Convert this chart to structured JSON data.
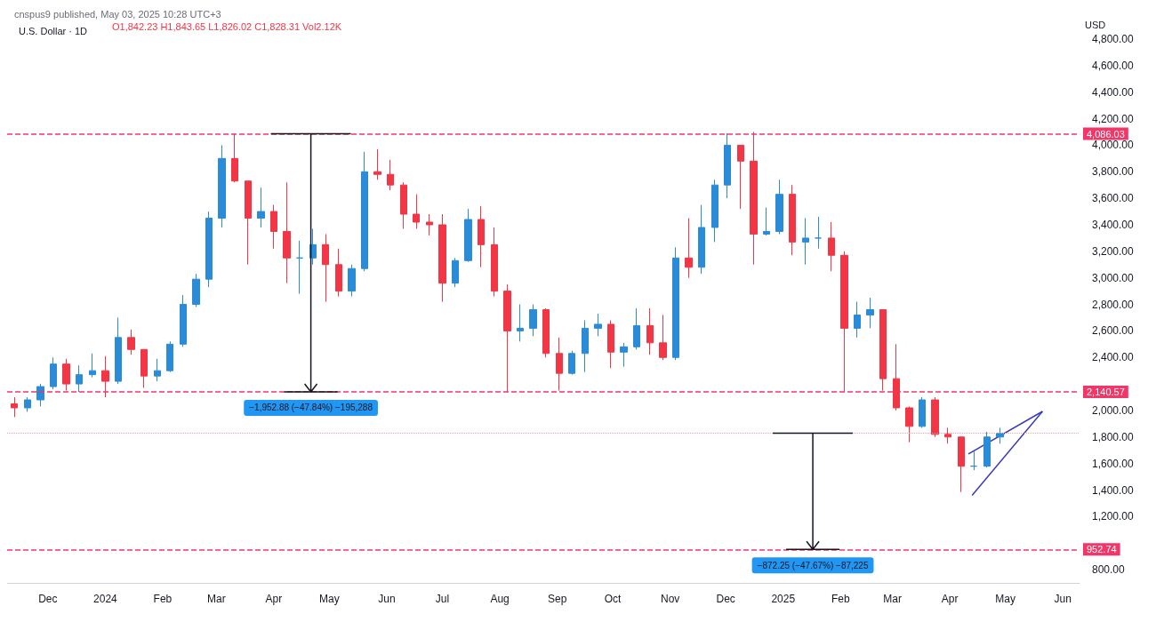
{
  "chart_data": {
    "type": "candlestick",
    "title": "U.S. Dollar · 1D",
    "ylabel": "USD",
    "annotations": [
      "cnspus9 published, May 03, 2025 10:28 UTC+3",
      "O1,842.23 H1,843.65 L1,826.02 C1,828.31 Vol2.12K",
      {
        "text": "−1,952.88 (−47.84%) −195,288",
        "x": "2024-04-21",
        "y": 4086.03
      },
      {
        "text": "−872.25 (−47.67%) −87,225",
        "x": "2025-01-17",
        "y": 1828.31
      }
    ],
    "x": [
      "2023-11-13",
      "2023-11-20",
      "2023-11-27",
      "2023-12-04",
      "2023-12-11",
      "2023-12-18",
      "2023-12-25",
      "2024-01-01",
      "2024-01-08",
      "2024-01-15",
      "2024-01-22",
      "2024-01-29",
      "2024-02-05",
      "2024-02-12",
      "2024-02-19",
      "2024-02-26",
      "2024-03-04",
      "2024-03-11",
      "2024-03-18",
      "2024-03-25",
      "2024-04-01",
      "2024-04-08",
      "2024-04-15",
      "2024-04-22",
      "2024-04-29",
      "2024-05-06",
      "2024-05-13",
      "2024-05-20",
      "2024-05-27",
      "2024-06-03",
      "2024-06-10",
      "2024-06-17",
      "2024-06-24",
      "2024-07-01",
      "2024-07-08",
      "2024-07-15",
      "2024-07-22",
      "2024-07-29",
      "2024-08-05",
      "2024-08-12",
      "2024-08-19",
      "2024-08-26",
      "2024-09-02",
      "2024-09-09",
      "2024-09-16",
      "2024-09-23",
      "2024-09-30",
      "2024-10-07",
      "2024-10-14",
      "2024-10-21",
      "2024-10-28",
      "2024-11-04",
      "2024-11-11",
      "2024-11-18",
      "2024-11-25",
      "2024-12-02",
      "2024-12-09",
      "2024-12-16",
      "2024-12-23",
      "2024-12-30",
      "2025-01-06",
      "2025-01-13",
      "2025-01-20",
      "2025-01-27",
      "2025-02-03",
      "2025-02-10",
      "2025-02-17",
      "2025-02-24",
      "2025-03-03",
      "2025-03-10",
      "2025-03-17",
      "2025-03-24",
      "2025-03-31",
      "2025-04-07",
      "2025-04-14",
      "2025-04-21",
      "2025-04-28"
    ],
    "ohlc": [
      [
        2050,
        2100,
        1950,
        2020
      ],
      [
        2020,
        2100,
        1990,
        2080
      ],
      [
        2080,
        2200,
        2030,
        2180
      ],
      [
        2180,
        2400,
        2160,
        2350
      ],
      [
        2350,
        2390,
        2150,
        2200
      ],
      [
        2200,
        2340,
        2140,
        2270
      ],
      [
        2270,
        2430,
        2250,
        2300
      ],
      [
        2300,
        2410,
        2100,
        2220
      ],
      [
        2220,
        2700,
        2200,
        2550
      ],
      [
        2550,
        2610,
        2420,
        2460
      ],
      [
        2460,
        2460,
        2170,
        2260
      ],
      [
        2260,
        2390,
        2220,
        2300
      ],
      [
        2300,
        2520,
        2290,
        2500
      ],
      [
        2500,
        2870,
        2480,
        2800
      ],
      [
        2800,
        3030,
        2780,
        2990
      ],
      [
        2990,
        3500,
        2930,
        3450
      ],
      [
        3450,
        4000,
        3380,
        3900
      ],
      [
        3900,
        4086,
        3720,
        3730
      ],
      [
        3730,
        3730,
        3100,
        3450
      ],
      [
        3450,
        3680,
        3380,
        3500
      ],
      [
        3500,
        3550,
        3220,
        3350
      ],
      [
        3350,
        3720,
        2960,
        3150
      ],
      [
        3150,
        3280,
        2880,
        3150
      ],
      [
        3150,
        3370,
        3100,
        3250
      ],
      [
        3250,
        3330,
        2820,
        3100
      ],
      [
        3100,
        3220,
        2860,
        2900
      ],
      [
        2900,
        3100,
        2860,
        3070
      ],
      [
        3070,
        3950,
        3050,
        3800
      ],
      [
        3800,
        3970,
        3740,
        3780
      ],
      [
        3780,
        3890,
        3660,
        3700
      ],
      [
        3700,
        3720,
        3370,
        3480
      ],
      [
        3480,
        3630,
        3370,
        3420
      ],
      [
        3420,
        3480,
        3320,
        3400
      ],
      [
        3400,
        3480,
        2820,
        2960
      ],
      [
        2960,
        3150,
        2930,
        3130
      ],
      [
        3130,
        3520,
        3120,
        3440
      ],
      [
        3440,
        3540,
        3080,
        3250
      ],
      [
        3250,
        3380,
        2860,
        2900
      ],
      [
        2900,
        2950,
        2140,
        2600
      ],
      [
        2600,
        2800,
        2520,
        2620
      ],
      [
        2620,
        2800,
        2560,
        2760
      ],
      [
        2760,
        2770,
        2400,
        2430
      ],
      [
        2430,
        2550,
        2150,
        2280
      ],
      [
        2280,
        2450,
        2270,
        2430
      ],
      [
        2430,
        2680,
        2290,
        2620
      ],
      [
        2620,
        2730,
        2560,
        2650
      ],
      [
        2650,
        2680,
        2320,
        2440
      ],
      [
        2440,
        2510,
        2330,
        2480
      ],
      [
        2480,
        2770,
        2460,
        2640
      ],
      [
        2640,
        2770,
        2420,
        2510
      ],
      [
        2510,
        2720,
        2380,
        2400
      ],
      [
        2400,
        3230,
        2380,
        3150
      ],
      [
        3150,
        3450,
        3000,
        3080
      ],
      [
        3080,
        3550,
        3030,
        3380
      ],
      [
        3380,
        3740,
        3270,
        3700
      ],
      [
        3700,
        4090,
        3600,
        4000
      ],
      [
        4000,
        4000,
        3520,
        3880
      ],
      [
        3880,
        4100,
        3100,
        3330
      ],
      [
        3330,
        3530,
        3320,
        3350
      ],
      [
        3350,
        3740,
        3330,
        3630
      ],
      [
        3630,
        3700,
        3170,
        3270
      ],
      [
        3270,
        3450,
        3100,
        3300
      ],
      [
        3300,
        3460,
        3220,
        3300
      ],
      [
        3300,
        3420,
        3050,
        3170
      ],
      [
        3170,
        3200,
        2140,
        2620
      ],
      [
        2620,
        2820,
        2550,
        2720
      ],
      [
        2720,
        2850,
        2620,
        2760
      ],
      [
        2760,
        2760,
        2150,
        2240
      ],
      [
        2240,
        2500,
        2000,
        2020
      ],
      [
        2020,
        2030,
        1760,
        1880
      ],
      [
        1880,
        2100,
        1870,
        2080
      ],
      [
        2080,
        2100,
        1800,
        1820
      ],
      [
        1820,
        1870,
        1750,
        1800
      ],
      [
        1800,
        1800,
        1385,
        1580
      ],
      [
        1580,
        1690,
        1550,
        1580
      ],
      [
        1580,
        1840,
        1570,
        1800
      ],
      [
        1800,
        1870,
        1750,
        1828.31
      ]
    ],
    "series": [
      {
        "type": "line",
        "color": "#3b3bb8",
        "x": [
          "2025-04-11",
          "2025-05-21"
        ],
        "values": [
          1672,
          1993
        ]
      },
      {
        "type": "line",
        "color": "#3b3bb8",
        "x": [
          "2025-04-13",
          "2025-05-21"
        ],
        "values": [
          1360,
          1993
        ]
      }
    ],
    "xlim": [
      "2023-11-09",
      "2025-06-10"
    ],
    "xticks": [
      {
        "value": "2023-12-01",
        "label": "Dec"
      },
      {
        "value": "2024-01-01",
        "label": "2024"
      },
      {
        "value": "2024-02-01",
        "label": "Feb"
      },
      {
        "value": "2024-03-01",
        "label": "Mar"
      },
      {
        "value": "2024-04-01",
        "label": "Apr"
      },
      {
        "value": "2024-05-01",
        "label": "May"
      },
      {
        "value": "2024-06-01",
        "label": "Jun"
      },
      {
        "value": "2024-07-01",
        "label": "Jul"
      },
      {
        "value": "2024-08-01",
        "label": "Aug"
      },
      {
        "value": "2024-09-01",
        "label": "Sep"
      },
      {
        "value": "2024-10-01",
        "label": "Oct"
      },
      {
        "value": "2024-11-01",
        "label": "Nov"
      },
      {
        "value": "2024-12-01",
        "label": "Dec"
      },
      {
        "value": "2025-01-01",
        "label": "2025"
      },
      {
        "value": "2025-02-01",
        "label": "Feb"
      },
      {
        "value": "2025-03-01",
        "label": "Mar"
      },
      {
        "value": "2025-04-01",
        "label": "Apr"
      },
      {
        "value": "2025-05-01",
        "label": "May"
      },
      {
        "value": "2025-06-01",
        "label": "Jun"
      }
    ],
    "ylim": [
      700,
      4800
    ],
    "yticks": [
      {
        "value": 800,
        "label": "800.00"
      },
      {
        "value": 1200,
        "label": "1,200.00"
      },
      {
        "value": 1400,
        "label": "1,400.00"
      },
      {
        "value": 1600,
        "label": "1,600.00"
      },
      {
        "value": 1800,
        "label": "1,800.00"
      },
      {
        "value": 2000,
        "label": "2,000.00"
      },
      {
        "value": 2400,
        "label": "2,400.00"
      },
      {
        "value": 2600,
        "label": "2,600.00"
      },
      {
        "value": 2800,
        "label": "2,800.00"
      },
      {
        "value": 3000,
        "label": "3,000.00"
      },
      {
        "value": 3200,
        "label": "3,200.00"
      },
      {
        "value": 3400,
        "label": "3,400.00"
      },
      {
        "value": 3600,
        "label": "3,600.00"
      },
      {
        "value": 3800,
        "label": "3,800.00"
      },
      {
        "value": 4000,
        "label": "4,000.00"
      },
      {
        "value": 4200,
        "label": "4,200.00"
      },
      {
        "value": 4400,
        "label": "4,400.00"
      },
      {
        "value": 4600,
        "label": "4,600.00"
      },
      {
        "value": 4800,
        "label": "4,800.00"
      }
    ],
    "ref_lines": [
      {
        "axis": "y",
        "value": 4086.03,
        "label": "4,086.03",
        "color": "#f23668",
        "line_style": "dashed"
      },
      {
        "axis": "y",
        "value": 2140.57,
        "label": "2,140.57",
        "color": "#f23668",
        "line_style": "dashed"
      },
      {
        "axis": "y",
        "value": 952.74,
        "label": "952.74",
        "color": "#f23668",
        "line_style": "dashed"
      },
      {
        "axis": "y",
        "value": 1828.31,
        "label": null,
        "color": "#f7a1ae",
        "line_style": "dotted"
      }
    ],
    "grid": false
  }
}
